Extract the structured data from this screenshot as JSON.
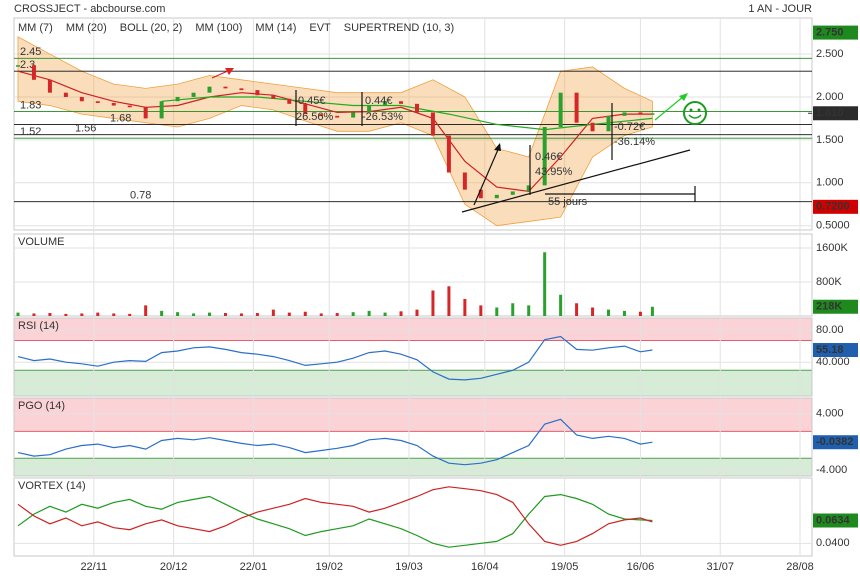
{
  "chart_data": {
    "type": "candlestick",
    "title": "CROSSJECT - abcbourse.com",
    "period": "1 AN - JOUR",
    "xlim": [
      0,
      200
    ],
    "xticks": [
      {
        "value": 20,
        "label": "22/11"
      },
      {
        "value": 40,
        "label": "20/12"
      },
      {
        "value": 60,
        "label": "22/01"
      },
      {
        "value": 79,
        "label": "19/02"
      },
      {
        "value": 99,
        "label": "19/03"
      },
      {
        "value": 118,
        "label": "16/04"
      },
      {
        "value": 138,
        "label": "19/05"
      },
      {
        "value": 157,
        "label": "16/06"
      },
      {
        "value": 177,
        "label": "31/07"
      },
      {
        "value": 197,
        "label": "28/08"
      }
    ],
    "x": [
      1,
      5,
      9,
      13,
      17,
      21,
      25,
      29,
      33,
      37,
      41,
      45,
      49,
      53,
      57,
      61,
      65,
      69,
      73,
      77,
      81,
      85,
      89,
      93,
      97,
      101,
      105,
      109,
      113,
      117,
      121,
      125,
      129,
      133,
      137,
      141,
      145,
      149,
      153,
      157,
      160
    ],
    "ylim": [
      0.45,
      2.92
    ],
    "yticks": [
      {
        "value": 0.5,
        "label": "0.5000"
      },
      {
        "value": 1,
        "label": "1.000"
      },
      {
        "value": 1.5,
        "label": "1.500"
      },
      {
        "value": 2,
        "label": "2.000"
      },
      {
        "value": 2.5,
        "label": "2.500"
      }
    ],
    "price": {
      "values": [
        2.37,
        2.2,
        2.05,
        2.0,
        1.95,
        1.93,
        1.9,
        1.88,
        1.75,
        1.95,
        2.0,
        2.05,
        2.12,
        2.1,
        2.08,
        2.02,
        1.98,
        1.92,
        1.8,
        1.78,
        1.76,
        1.82,
        1.9,
        1.95,
        1.92,
        1.82,
        1.55,
        1.12,
        0.92,
        0.82,
        0.86,
        0.9,
        0.97,
        1.65,
        2.05,
        1.7,
        1.6,
        1.78,
        1.82,
        1.8,
        1.81
      ],
      "last_label": "1.810",
      "up_color": "#2ca02c",
      "down_color": "#d62728"
    },
    "boxes": [
      {
        "value": 2.75,
        "label": "2.750",
        "color": "#1e8a1e"
      },
      {
        "value": 0.72,
        "label": "0.7200",
        "color": "#d00000"
      }
    ],
    "indicators": [
      {
        "name": "MM (7)",
        "color": "#2233cc"
      },
      {
        "name": "MM (20)",
        "color": "#cc2222",
        "x": [
          1,
          9,
          17,
          25,
          33,
          41,
          49,
          57,
          65,
          73,
          81,
          89,
          97,
          105,
          113,
          121,
          129,
          137,
          145,
          153,
          160
        ],
        "values": [
          2.3,
          2.2,
          2.05,
          1.95,
          1.88,
          1.9,
          2.0,
          2.05,
          2.02,
          1.92,
          1.82,
          1.83,
          1.88,
          1.75,
          1.25,
          0.95,
          0.9,
          1.3,
          1.75,
          1.8,
          1.8
        ]
      },
      {
        "name": "BOLL (20, 2)",
        "color": "#f0a040",
        "x": [
          1,
          9,
          17,
          25,
          33,
          41,
          49,
          57,
          65,
          73,
          81,
          89,
          97,
          105,
          113,
          121,
          129,
          137,
          145,
          153,
          160
        ],
        "upper": [
          2.7,
          2.5,
          2.3,
          2.15,
          2.1,
          2.15,
          2.25,
          2.2,
          2.15,
          2.1,
          2.05,
          2.05,
          2.05,
          2.2,
          2.0,
          1.4,
          1.3,
          2.3,
          2.35,
          2.1,
          1.95
        ],
        "lower": [
          1.95,
          1.9,
          1.8,
          1.75,
          1.7,
          1.65,
          1.75,
          1.9,
          1.85,
          1.72,
          1.6,
          1.6,
          1.7,
          1.55,
          0.75,
          0.5,
          0.55,
          0.6,
          1.3,
          1.55,
          1.65
        ]
      },
      {
        "name": "MM (100)",
        "color": "#22aa22",
        "x": [
          37,
          49,
          61,
          73,
          85,
          97,
          109,
          121,
          133,
          145,
          160
        ],
        "values": [
          1.95,
          2.0,
          2.0,
          1.95,
          1.9,
          1.9,
          1.8,
          1.68,
          1.62,
          1.68,
          1.75
        ]
      },
      {
        "name": "MM (14)",
        "color": "#111111"
      },
      {
        "name": "EVT",
        "color": "#111111"
      },
      {
        "name": "SUPERTREND (10, 3)",
        "color": "#a01020"
      }
    ],
    "levels": [
      2.45,
      2.3,
      1.83,
      1.68,
      1.56,
      1.52,
      0.78
    ],
    "level_colors": [
      "#1e8a1e",
      "#111111",
      "#1e8a1e",
      "#111111",
      "#111111",
      "#1e8a1e",
      "#111111"
    ],
    "annotations": [
      "0.45€",
      "26.56%",
      "0.44€",
      "-26.53%",
      "0.46€",
      "43.95%",
      "-0.72€",
      "-36.14%",
      "55 jours"
    ],
    "volume": {
      "title": "VOLUME",
      "ylim": [
        0,
        1930
      ],
      "yticks": [
        {
          "value": 800,
          "label": "800K"
        },
        {
          "value": 1600,
          "label": "1600K"
        }
      ],
      "values": [
        80,
        60,
        70,
        50,
        60,
        80,
        60,
        50,
        250,
        120,
        90,
        60,
        80,
        70,
        60,
        70,
        150,
        80,
        100,
        60,
        70,
        90,
        120,
        80,
        110,
        150,
        600,
        700,
        400,
        250,
        200,
        300,
        250,
        1500,
        500,
        300,
        200,
        150,
        120,
        100,
        218
      ],
      "last_label": "218K",
      "box_color": "#1e8a1e"
    },
    "rsi": {
      "title": "RSI (14)",
      "ylim": [
        -2,
        95
      ],
      "yticks": [
        {
          "value": 40,
          "label": "40.000"
        },
        {
          "value": 80,
          "label": "80.00"
        }
      ],
      "zones": [
        67,
        30
      ],
      "color": "#2a6fc9",
      "values": [
        47,
        42,
        44,
        40,
        38,
        35,
        40,
        42,
        41,
        52,
        54,
        58,
        59,
        56,
        52,
        50,
        47,
        42,
        36,
        38,
        40,
        45,
        52,
        54,
        50,
        43,
        28,
        19,
        18,
        20,
        25,
        30,
        40,
        68,
        72,
        56,
        55,
        58,
        60,
        53,
        55.18
      ],
      "box_color": "#1f5fae"
    },
    "pgo": {
      "title": "PGO (14)",
      "ylim": [
        -4.8,
        6.2
      ],
      "yticks": [
        {
          "value": -4,
          "label": "-4.000"
        },
        {
          "value": 4,
          "label": "4.000"
        }
      ],
      "zones": [
        1.5,
        -2.3
      ],
      "color": "#2a6fc9",
      "values": [
        -1.5,
        -2,
        -1.8,
        -1,
        -0.5,
        -0.3,
        -0.8,
        -0.5,
        -1,
        0.2,
        0.5,
        0.3,
        0.6,
        0.2,
        -0.2,
        -0.5,
        -0.3,
        -0.8,
        -1.5,
        -1.2,
        -0.9,
        -0.5,
        0.3,
        0.5,
        0.2,
        -0.5,
        -2,
        -3,
        -3.2,
        -3,
        -2.5,
        -1.5,
        -0.5,
        2.5,
        3.2,
        1,
        0.5,
        0.8,
        0.5,
        -0.3,
        -0.0382
      ],
      "box_color": "#1f5fae"
    },
    "vortex": {
      "title": "VORTEX (14)",
      "ylim": [
        0.027,
        0.107
      ],
      "yticks": [
        {
          "value": 0.04,
          "label": "0.0400"
        }
      ],
      "box_color": "#1e8a1e",
      "series": [
        {
          "color": "#1e9a1e",
          "values": [
            0.058,
            0.07,
            0.078,
            0.072,
            0.08,
            0.076,
            0.082,
            0.085,
            0.078,
            0.075,
            0.082,
            0.085,
            0.088,
            0.08,
            0.072,
            0.065,
            0.06,
            0.055,
            0.048,
            0.052,
            0.055,
            0.058,
            0.065,
            0.06,
            0.055,
            0.048,
            0.04,
            0.036,
            0.038,
            0.04,
            0.042,
            0.05,
            0.07,
            0.088,
            0.09,
            0.086,
            0.08,
            0.07,
            0.065,
            0.064,
            0.0634
          ]
        },
        {
          "color": "#cc2222",
          "values": [
            0.08,
            0.068,
            0.06,
            0.066,
            0.058,
            0.062,
            0.056,
            0.054,
            0.06,
            0.064,
            0.058,
            0.055,
            0.052,
            0.058,
            0.066,
            0.072,
            0.076,
            0.08,
            0.086,
            0.082,
            0.08,
            0.078,
            0.072,
            0.076,
            0.082,
            0.088,
            0.095,
            0.098,
            0.096,
            0.094,
            0.09,
            0.082,
            0.06,
            0.042,
            0.038,
            0.042,
            0.05,
            0.06,
            0.064,
            0.066,
            0.062
          ]
        }
      ]
    }
  }
}
